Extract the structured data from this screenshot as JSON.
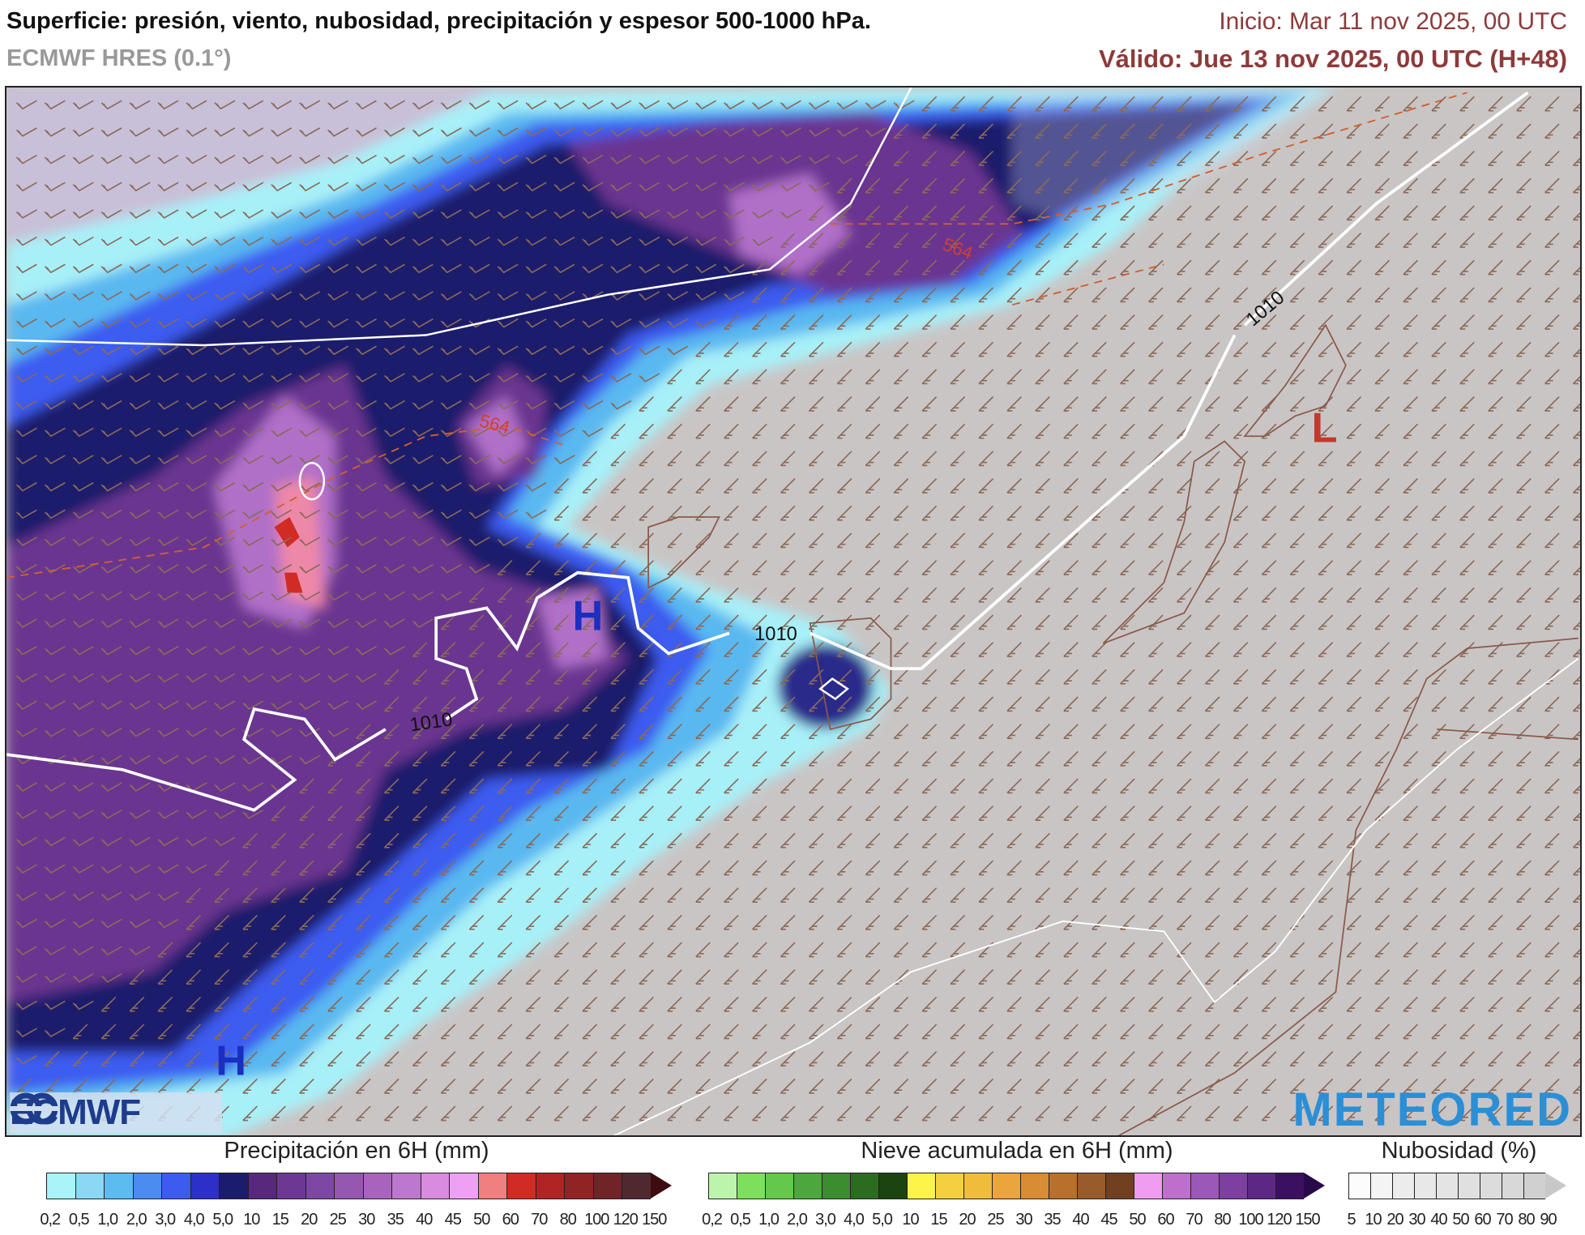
{
  "header": {
    "title": "Superficie: presión, viento, nubosidad, precipitación y espesor 500-1000 hPa.",
    "model": "ECMWF HRES (0.1°)",
    "init": "Inicio: Mar 11 nov 2025, 00 UTC",
    "valid": "Válido: Jue 13 nov 2025, 00 UTC (H+48)"
  },
  "map": {
    "isobar_labels": [
      "1010",
      "1010",
      "1010"
    ],
    "thickness_labels": [
      "564",
      "564"
    ],
    "pressure_centers": [
      "H",
      "H",
      "L"
    ],
    "colors": {
      "land_cloud": "#c9c5c5",
      "isobar": "#ffffff",
      "thickness": "#d06030",
      "high": "#1a2fc0",
      "low": "#c0392b",
      "coast": "#8a5a4a",
      "barb": "#8a6a5a"
    }
  },
  "logos": {
    "left": "ECMWF",
    "right": "METEORED"
  },
  "legend": {
    "precip": {
      "title": "Precipitación en 6H (mm)",
      "ticks": [
        "0,2",
        "0,5",
        "1,0",
        "2,0",
        "3,0",
        "4,0",
        "5,0",
        "10",
        "15",
        "20",
        "25",
        "30",
        "35",
        "40",
        "45",
        "50",
        "60",
        "70",
        "80",
        "100",
        "120",
        "150"
      ],
      "colors": [
        "#a8f4f8",
        "#8ad8f4",
        "#5cbcf0",
        "#4c8cf0",
        "#3c5cf0",
        "#2c30c8",
        "#1c1c6c",
        "#58287c",
        "#6c3894",
        "#7c48a4",
        "#9458b0",
        "#a864bc",
        "#bc78cc",
        "#d88ce0",
        "#f0a0f4",
        "#f08080",
        "#d02c24",
        "#b02424",
        "#902424",
        "#702428",
        "#502830"
      ],
      "arrow_color": "#3c0c10"
    },
    "snow": {
      "title": "Nieve acumulada en 6H (mm)",
      "ticks": [
        "0,2",
        "0,5",
        "1,0",
        "2,0",
        "3,0",
        "4,0",
        "5,0",
        "10",
        "15",
        "20",
        "25",
        "30",
        "35",
        "40",
        "45",
        "50",
        "60",
        "70",
        "80",
        "100",
        "120",
        "150"
      ],
      "colors": [
        "#bcf4ac",
        "#7ce05c",
        "#64c84c",
        "#4ca83c",
        "#3c8c30",
        "#2c6c20",
        "#1c4410",
        "#fcf448",
        "#f4d040",
        "#f0bc3c",
        "#ec a43c",
        "#d88c34",
        "#b8702c",
        "#985c2c",
        "#704020",
        "#f09cf0",
        "#bc70cc",
        "#9c58b8",
        "#7c40a0",
        "#5c2884",
        "#3c1060"
      ],
      "arrow_color": "#280a48"
    },
    "cloud": {
      "title": "Nubosidad (%)",
      "ticks": [
        "5",
        "10",
        "20",
        "30",
        "40",
        "50",
        "60",
        "70",
        "80",
        "90"
      ],
      "colors": [
        "#fcfcfc",
        "#f4f4f4",
        "#ececec",
        "#e8e8e8",
        "#e4e4e4",
        "#e0e0e0",
        "#dcdcdc",
        "#d8d8d8",
        "#d0d0d0"
      ],
      "arrow_color": "#c8c8c8"
    }
  }
}
